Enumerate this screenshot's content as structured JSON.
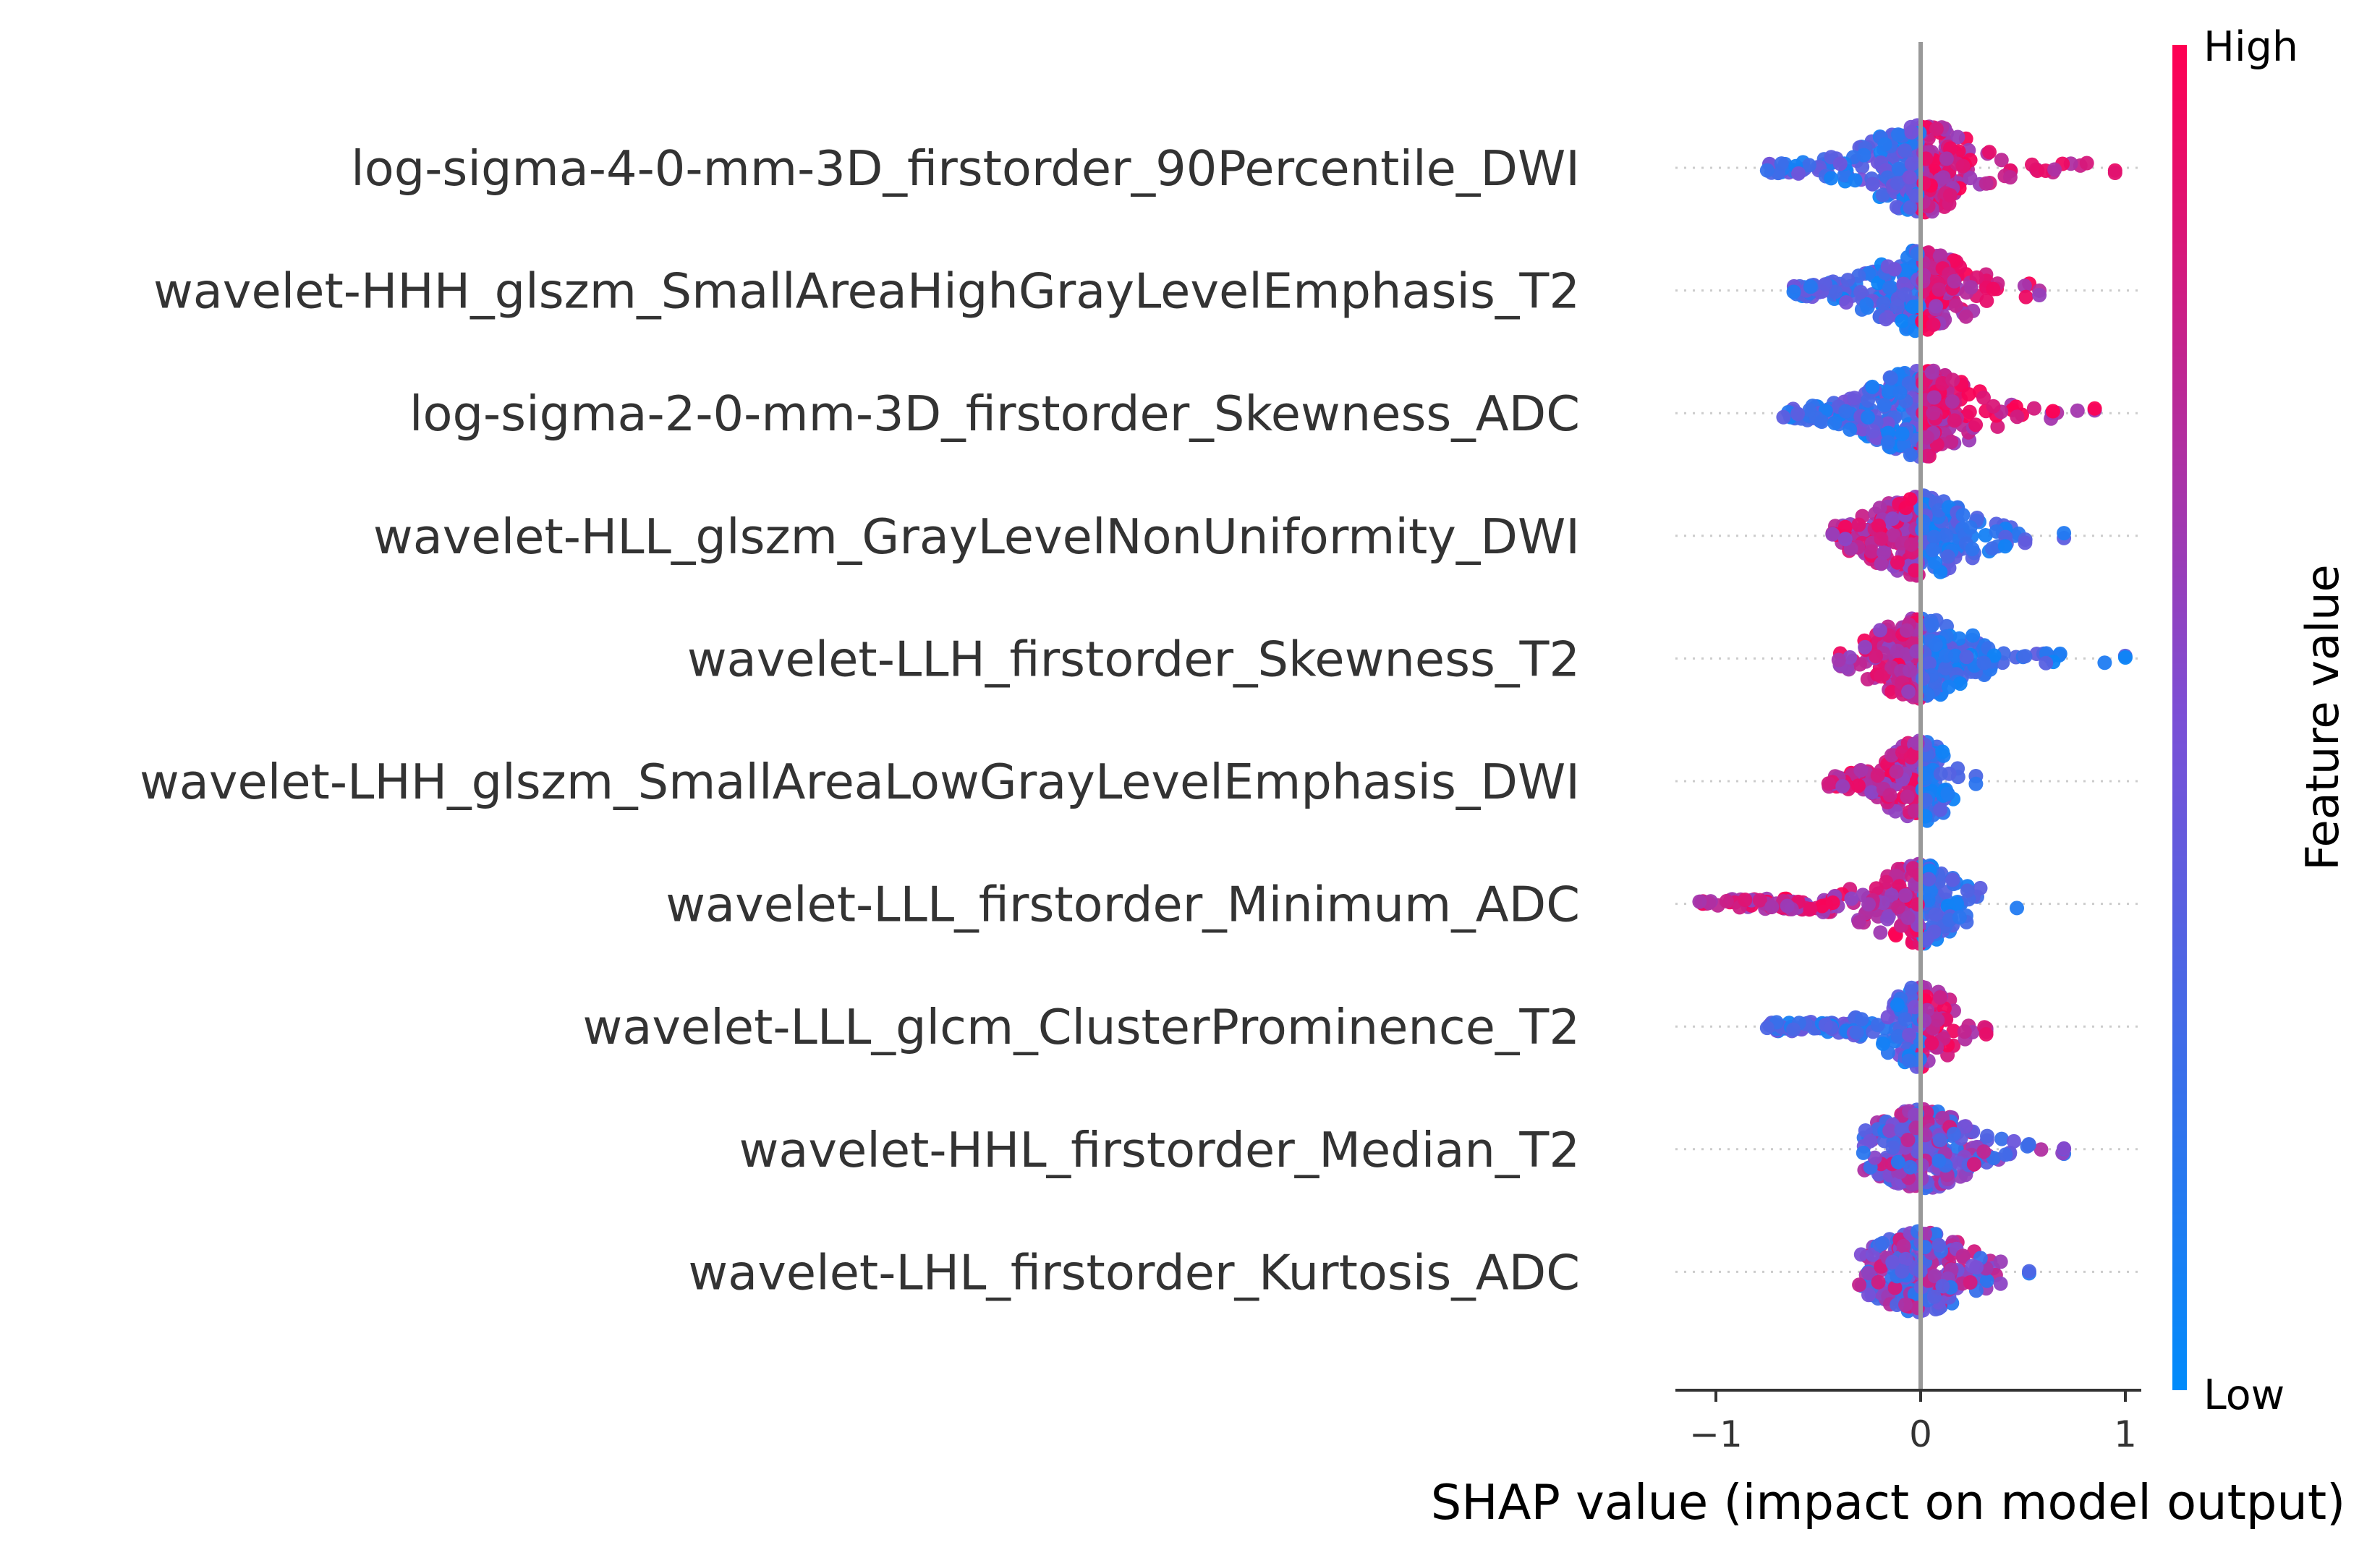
{
  "chart_data": {
    "type": "scatter",
    "subtype": "shap-beeswarm",
    "title": "",
    "xlabel": "SHAP value (impact on model output)",
    "xlim": [
      -1.22,
      1.12
    ],
    "xticks": [
      {
        "value": -1,
        "label": "−1"
      },
      {
        "value": 0,
        "label": "0"
      },
      {
        "value": 1,
        "label": "1"
      }
    ],
    "colorbar": {
      "title": "Feature value",
      "high_label": "High",
      "low_label": "Low",
      "low_color": "#008bfb",
      "mid_color": "#7b4fd6",
      "high_color": "#ff0052"
    },
    "features": [
      {
        "name": "log-sigma-4-0-mm-3D_firstorder_90Percentile_DWI",
        "shap_min": -0.75,
        "shap_max": 0.95,
        "trend": "positive",
        "spread": "wide"
      },
      {
        "name": "wavelet-HHH_glszm_SmallAreaHighGrayLevelEmphasis_T2",
        "shap_min": -0.62,
        "shap_max": 0.58,
        "trend": "positive",
        "spread": "medium"
      },
      {
        "name": "log-sigma-2-0-mm-3D_firstorder_Skewness_ADC",
        "shap_min": -0.67,
        "shap_max": 0.85,
        "trend": "positive",
        "spread": "wide"
      },
      {
        "name": "wavelet-HLL_glszm_GrayLevelNonUniformity_DWI",
        "shap_min": -0.43,
        "shap_max": 0.7,
        "trend": "negative",
        "spread": "medium"
      },
      {
        "name": "wavelet-LLH_firstorder_Skewness_T2",
        "shap_min": -0.4,
        "shap_max": 1.0,
        "trend": "negative",
        "spread": "medium"
      },
      {
        "name": "wavelet-LHH_glszm_SmallAreaLowGrayLevelEmphasis_DWI",
        "shap_min": -0.45,
        "shap_max": 0.27,
        "trend": "negative",
        "spread": "narrow"
      },
      {
        "name": "wavelet-LLL_firstorder_Minimum_ADC",
        "shap_min": -1.08,
        "shap_max": 0.47,
        "trend": "negative",
        "spread": "medium"
      },
      {
        "name": "wavelet-LLL_glcm_ClusterProminence_T2",
        "shap_min": -0.75,
        "shap_max": 0.32,
        "trend": "positive",
        "spread": "narrow"
      },
      {
        "name": "wavelet-HHL_firstorder_Median_T2",
        "shap_min": -0.28,
        "shap_max": 0.7,
        "trend": "mixed",
        "spread": "medium"
      },
      {
        "name": "wavelet-LHL_firstorder_Kurtosis_ADC",
        "shap_min": -0.3,
        "shap_max": 0.53,
        "trend": "mixed",
        "spread": "medium"
      }
    ],
    "grid": false
  }
}
